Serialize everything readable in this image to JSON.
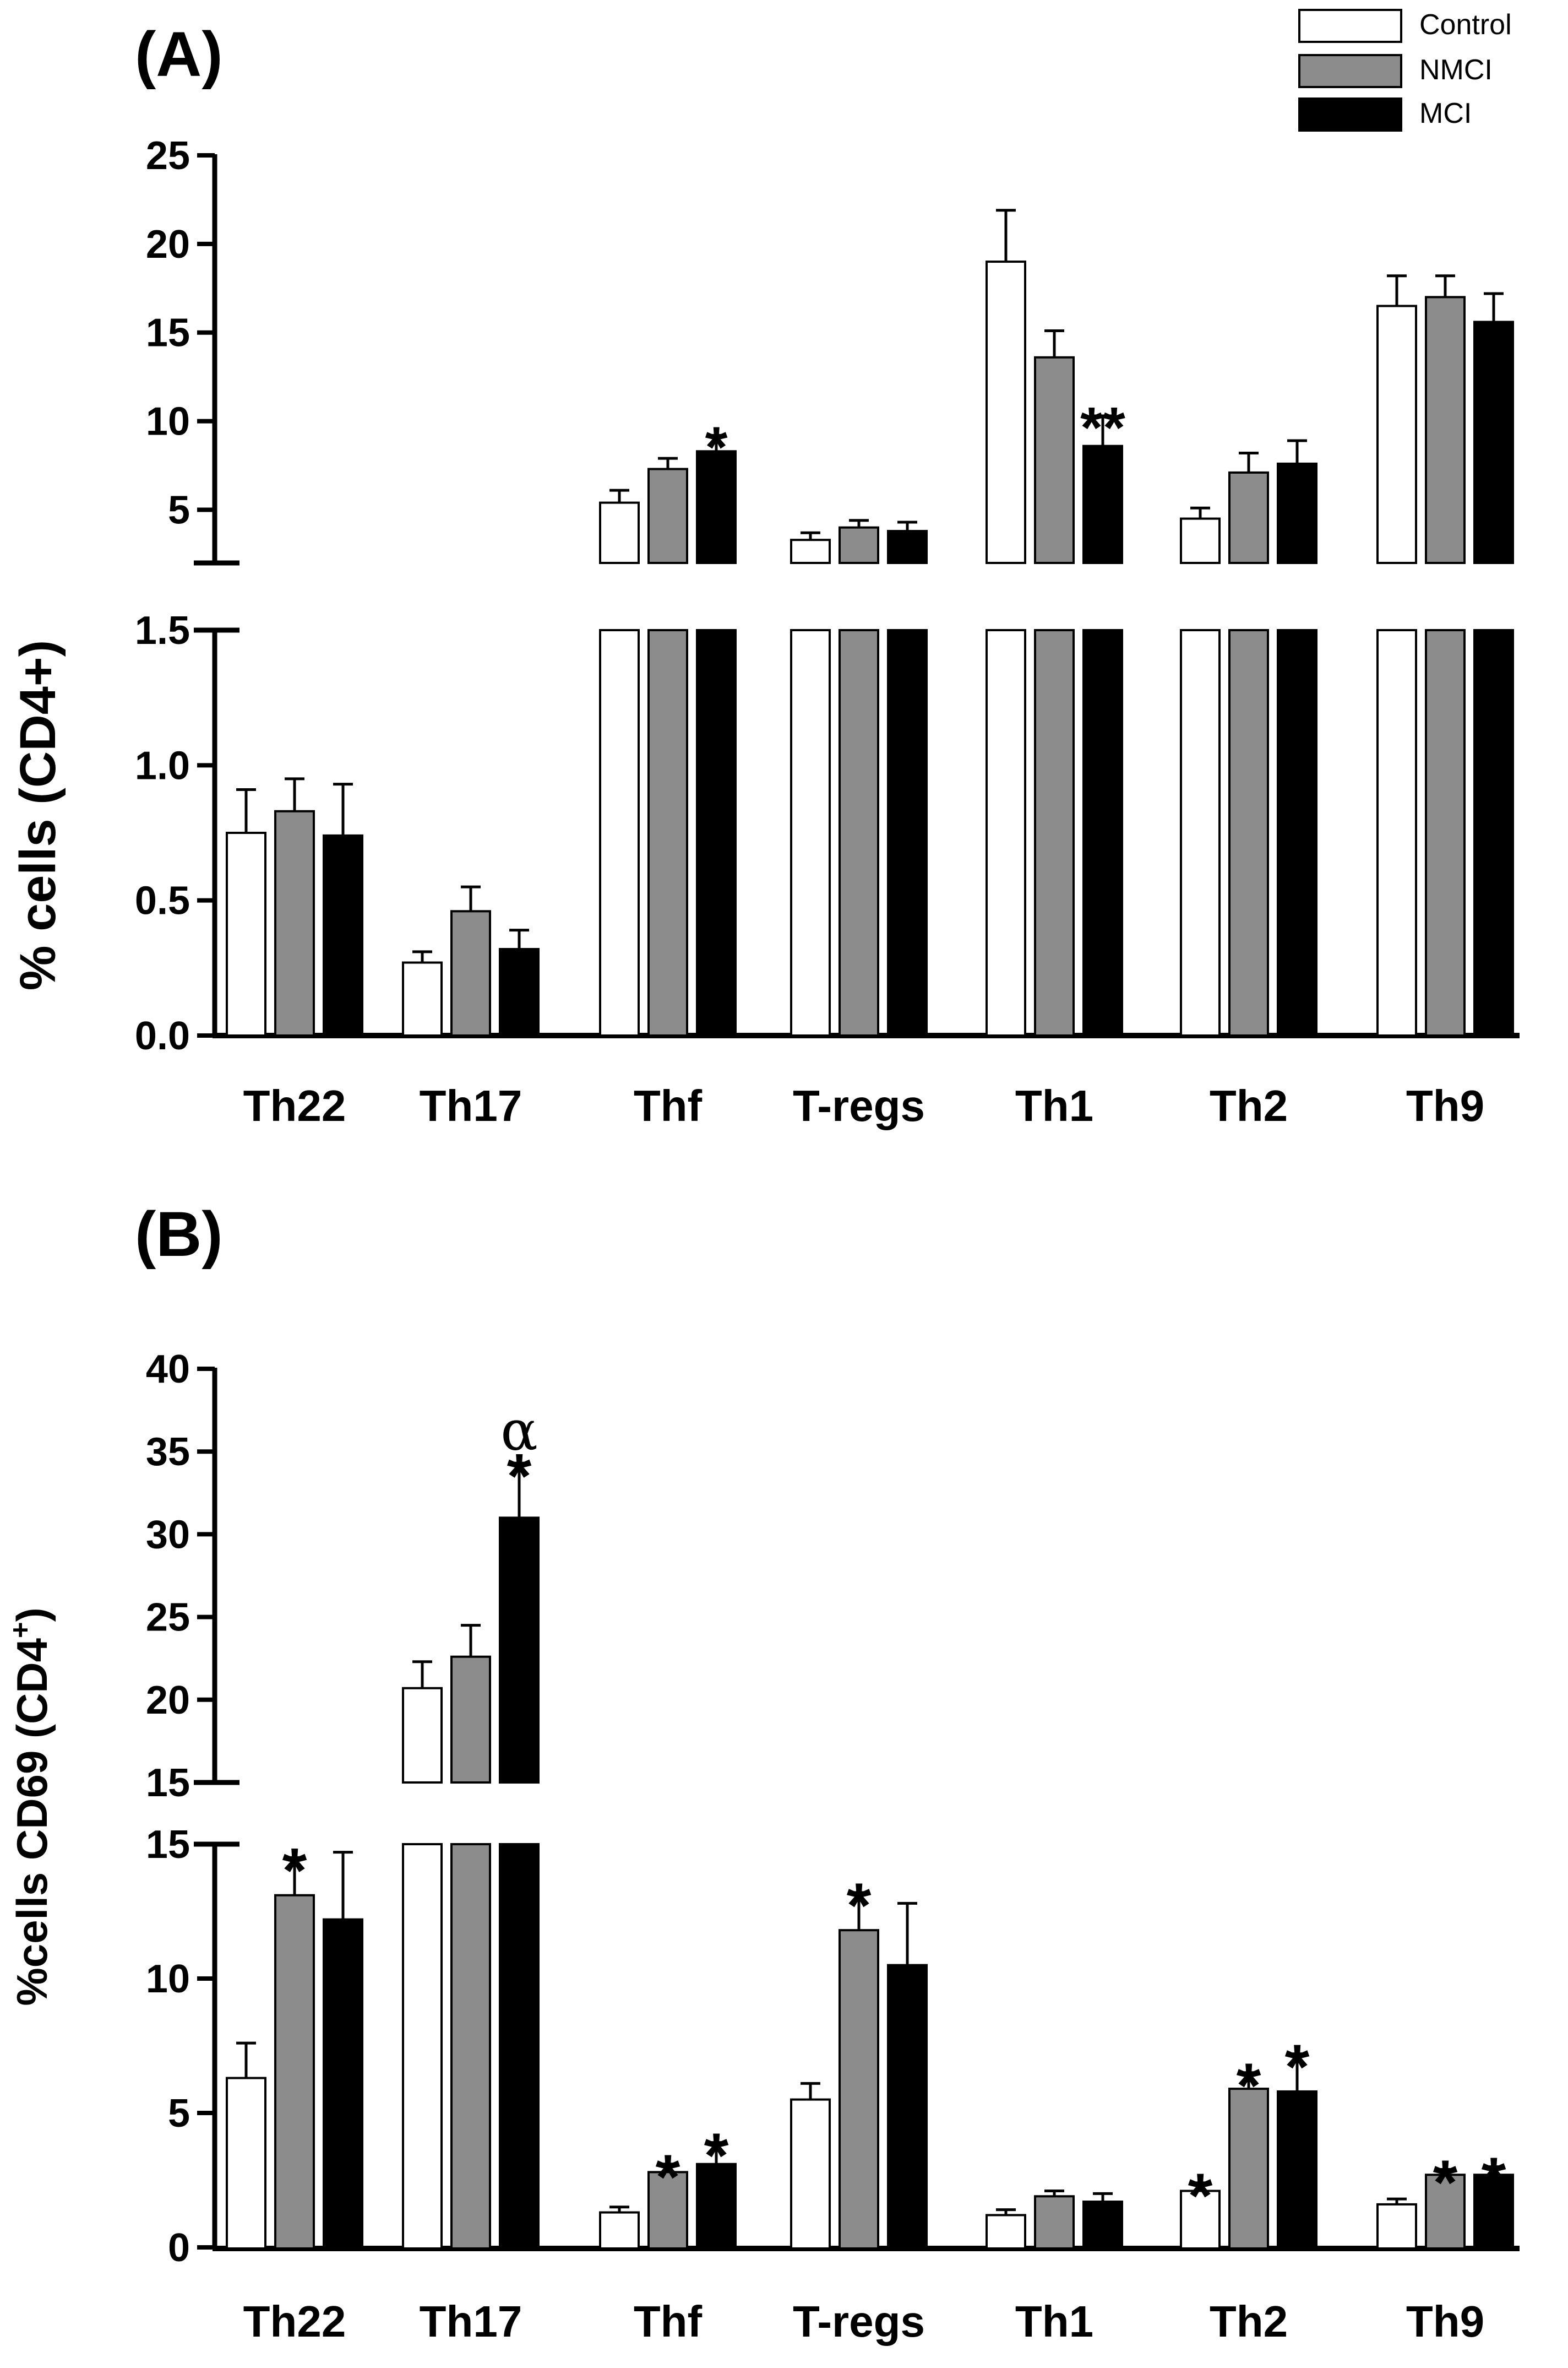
{
  "chart_data": [
    {
      "panel": "(A)",
      "type": "bar",
      "ylabel": "% cells (CD4+)",
      "categories": [
        "Th22",
        "Th17",
        "Thf",
        "T-regs",
        "Th1",
        "Th2",
        "Th9"
      ],
      "series": [
        {
          "name": "Control",
          "color": "#ffffff",
          "values": [
            0.75,
            0.27,
            5.4,
            3.3,
            19.0,
            4.5,
            16.5
          ],
          "errors": [
            0.16,
            0.04,
            0.7,
            0.4,
            2.9,
            0.6,
            1.7
          ]
        },
        {
          "name": "NMCI",
          "color": "#8c8c8c",
          "values": [
            0.83,
            0.46,
            7.3,
            4.0,
            13.6,
            7.1,
            17.0
          ],
          "errors": [
            0.12,
            0.09,
            0.6,
            0.4,
            1.5,
            1.1,
            1.2
          ]
        },
        {
          "name": "MCI",
          "color": "#000000",
          "values": [
            0.74,
            0.32,
            8.3,
            3.8,
            8.6,
            7.6,
            15.6
          ],
          "errors": [
            0.19,
            0.07,
            0.9,
            0.5,
            1.7,
            1.3,
            1.6
          ]
        }
      ],
      "axis_break": {
        "lower_ylim": [
          0,
          1.5
        ],
        "upper_ylim": [
          2,
          25
        ]
      },
      "yticks_lower": [
        "0.0",
        "0.5",
        "1.0",
        "1.5"
      ],
      "yticks_upper": [
        "5",
        "10",
        "15",
        "20",
        "25"
      ],
      "annotations": [
        {
          "category": "Thf",
          "series": "MCI",
          "text": "*"
        },
        {
          "category": "Th1",
          "series": "MCI",
          "text": "**"
        }
      ]
    },
    {
      "panel": "(B)",
      "type": "bar",
      "ylabel": "%cells CD69 (CD4",
      "ylabel_superscript": "+",
      "ylabel_close": ")",
      "categories": [
        "Th22",
        "Th17",
        "Thf",
        "T-regs",
        "Th1",
        "Th2",
        "Th9"
      ],
      "series": [
        {
          "name": "Control",
          "color": "#ffffff",
          "values": [
            6.3,
            20.7,
            1.3,
            5.5,
            1.2,
            2.1,
            1.6
          ],
          "errors": [
            1.3,
            1.6,
            0.2,
            0.6,
            0.2,
            0.3,
            0.2
          ]
        },
        {
          "name": "NMCI",
          "color": "#8c8c8c",
          "values": [
            13.1,
            22.6,
            2.8,
            11.8,
            1.9,
            5.9,
            2.7
          ],
          "errors": [
            1.4,
            1.9,
            0.3,
            1.4,
            0.2,
            0.6,
            0.2
          ]
        },
        {
          "name": "MCI",
          "color": "#000000",
          "values": [
            12.2,
            31.0,
            3.1,
            10.5,
            1.7,
            5.8,
            2.7
          ],
          "errors": [
            2.5,
            3.3,
            0.8,
            2.3,
            0.3,
            1.4,
            0.3
          ]
        }
      ],
      "axis_break": {
        "lower_ylim": [
          0,
          15
        ],
        "upper_ylim": [
          15,
          40
        ]
      },
      "yticks_lower": [
        "0",
        "5",
        "10",
        "15"
      ],
      "yticks_upper": [
        "15",
        "20",
        "25",
        "30",
        "35",
        "40"
      ],
      "annotations": [
        {
          "category": "Th22",
          "series": "NMCI",
          "text": "*"
        },
        {
          "category": "Th17",
          "series": "MCI",
          "text": "*"
        },
        {
          "category": "Th17",
          "series": "MCI",
          "text": "α"
        },
        {
          "category": "Thf",
          "series": "NMCI",
          "text": "*"
        },
        {
          "category": "Thf",
          "series": "MCI",
          "text": "*"
        },
        {
          "category": "T-regs",
          "series": "NMCI",
          "text": "*"
        },
        {
          "category": "Th2",
          "series": "Control",
          "text": "*"
        },
        {
          "category": "Th2",
          "series": "NMCI",
          "text": "*"
        },
        {
          "category": "Th2",
          "series": "MCI",
          "text": "*"
        },
        {
          "category": "Th9",
          "series": "NMCI",
          "text": "*"
        },
        {
          "category": "Th9",
          "series": "MCI",
          "text": "*"
        }
      ]
    }
  ],
  "legend": {
    "position": "top-right",
    "items": [
      {
        "label": "Control",
        "color": "#ffffff"
      },
      {
        "label": "NMCI",
        "color": "#8c8c8c"
      },
      {
        "label": "MCI",
        "color": "#000000"
      }
    ]
  }
}
